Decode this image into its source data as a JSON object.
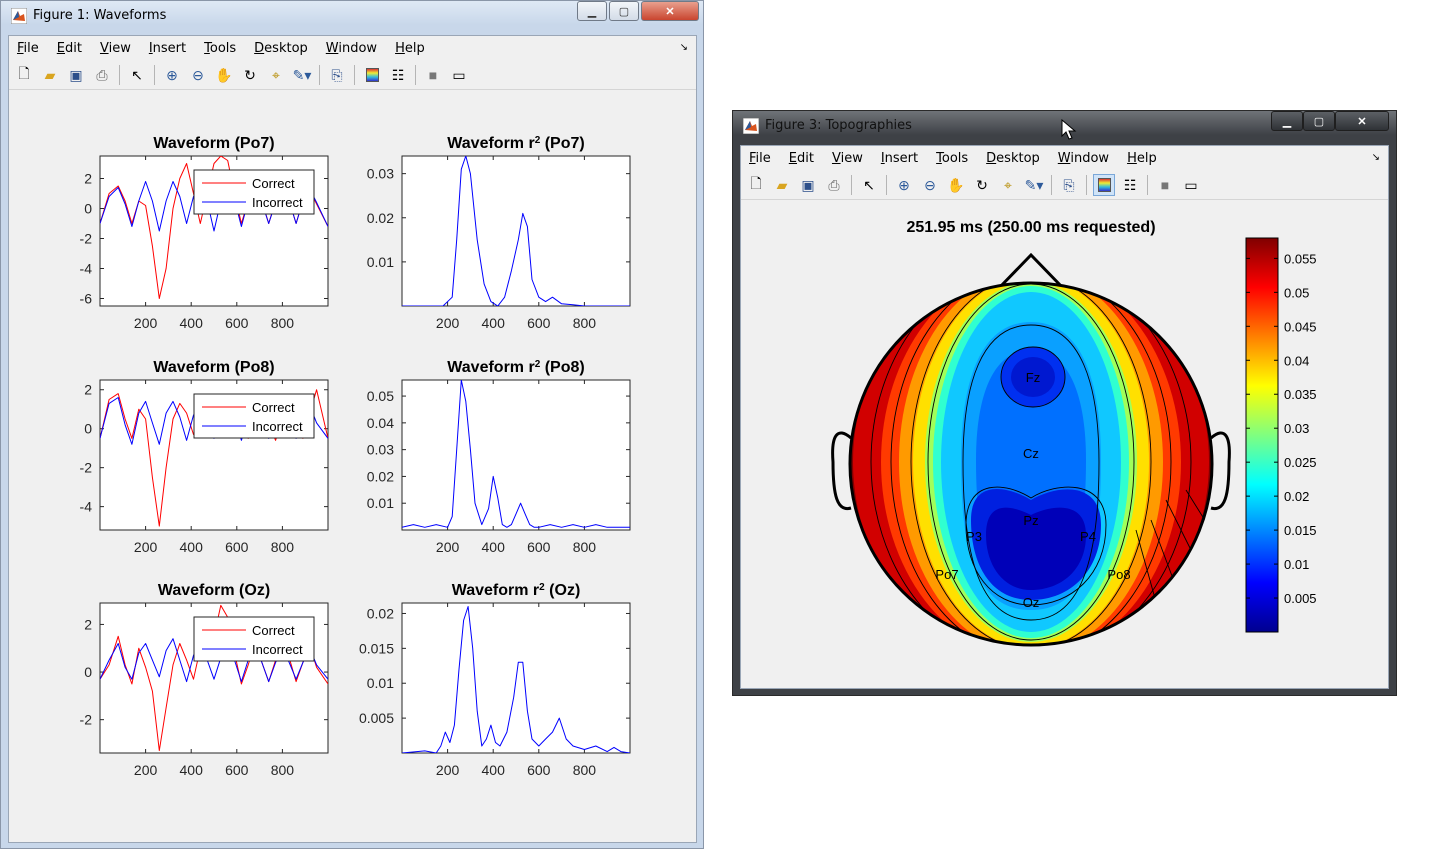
{
  "window1": {
    "title": "Figure 1: Waveforms",
    "menu": [
      "File",
      "Edit",
      "View",
      "Insert",
      "Tools",
      "Desktop",
      "Window",
      "Help"
    ],
    "toolbar_icons": [
      "new-file-icon",
      "open-folder-icon",
      "save-icon",
      "print-icon",
      "pointer-icon",
      "zoom-in-icon",
      "zoom-out-icon",
      "pan-hand-icon",
      "rotate-3d-icon",
      "data-cursor-icon",
      "brush-icon",
      "link-plot-icon",
      "colorbar-icon",
      "legend-icon",
      "hide-plot-tools-icon",
      "show-plot-tools-icon"
    ]
  },
  "window2": {
    "title": "Figure 3: Topographies",
    "menu": [
      "File",
      "Edit",
      "View",
      "Insert",
      "Tools",
      "Desktop",
      "Window",
      "Help"
    ],
    "toolbar_icons": [
      "new-file-icon",
      "open-folder-icon",
      "save-icon",
      "print-icon",
      "pointer-icon",
      "zoom-in-icon",
      "zoom-out-icon",
      "pan-hand-icon",
      "rotate-3d-icon",
      "data-cursor-icon",
      "brush-icon",
      "link-plot-icon",
      "colorbar-icon",
      "legend-icon",
      "hide-plot-tools-icon",
      "show-plot-tools-icon"
    ]
  },
  "colors": {
    "correct": "#ff0000",
    "incorrect": "#0000ff"
  },
  "chart_data": [
    {
      "type": "line",
      "title": "Waveform (Po7)",
      "xlim": [
        0,
        1000
      ],
      "ylim": [
        -6.5,
        3.5
      ],
      "xticks": [
        200,
        400,
        600,
        800
      ],
      "yticks": [
        2,
        0,
        -2,
        -4,
        -6
      ],
      "legend": [
        "Correct",
        "Incorrect"
      ],
      "series": [
        {
          "name": "Correct",
          "x": [
            0,
            40,
            80,
            110,
            140,
            170,
            200,
            230,
            260,
            290,
            320,
            350,
            380,
            410,
            440,
            470,
            500,
            530,
            560,
            590,
            620,
            650,
            680,
            710,
            740,
            770,
            800,
            830,
            860,
            890,
            920,
            950,
            1000
          ],
          "y": [
            -1,
            1,
            1.5,
            0.5,
            -1,
            0.5,
            0.2,
            -2.5,
            -6,
            -4,
            0,
            2,
            3,
            1,
            -1,
            1,
            3,
            3.5,
            3.2,
            1,
            -1,
            0.5,
            1.5,
            0.5,
            -1,
            0.5,
            1.5,
            0.5,
            -1,
            0.5,
            1.2,
            0.3,
            -1.2
          ]
        },
        {
          "name": "Incorrect",
          "x": [
            0,
            40,
            80,
            110,
            140,
            170,
            200,
            230,
            260,
            290,
            320,
            350,
            380,
            410,
            440,
            470,
            500,
            530,
            560,
            590,
            620,
            650,
            680,
            710,
            740,
            770,
            800,
            830,
            860,
            890,
            920,
            950,
            1000
          ],
          "y": [
            -1,
            0.8,
            1.4,
            0.3,
            -1.2,
            0.5,
            1.8,
            0.5,
            -1.5,
            0.5,
            1.8,
            0.8,
            -1,
            0.8,
            1.6,
            0.5,
            -1.5,
            0.5,
            1.6,
            0.6,
            -1.2,
            0.5,
            1.4,
            0.4,
            -1,
            0.4,
            1.4,
            0.5,
            -1,
            0.5,
            1.3,
            0.4,
            -1.2
          ]
        }
      ]
    },
    {
      "type": "line",
      "title": "Waveform r",
      "title_sup": "2",
      "title_suffix": " (Po7)",
      "xlim": [
        0,
        1000
      ],
      "ylim": [
        0,
        0.034
      ],
      "xticks": [
        200,
        400,
        600,
        800
      ],
      "yticks": [
        0.01,
        0.02,
        0.03
      ],
      "series": [
        {
          "name": "",
          "x": [
            0,
            180,
            220,
            240,
            260,
            280,
            300,
            330,
            360,
            390,
            420,
            450,
            480,
            510,
            530,
            550,
            570,
            600,
            630,
            660,
            700,
            750,
            800,
            850,
            900,
            1000
          ],
          "y": [
            0,
            0,
            0.002,
            0.015,
            0.031,
            0.034,
            0.03,
            0.015,
            0.005,
            0.001,
            0,
            0.002,
            0.008,
            0.015,
            0.021,
            0.018,
            0.006,
            0.002,
            0.001,
            0.002,
            0.0005,
            0.0003,
            0,
            0,
            0,
            0
          ]
        }
      ]
    },
    {
      "type": "line",
      "title": "Waveform (Po8)",
      "xlim": [
        0,
        1000
      ],
      "ylim": [
        -5.2,
        2.5
      ],
      "xticks": [
        200,
        400,
        600,
        800
      ],
      "yticks": [
        2,
        0,
        -2,
        -4
      ],
      "legend": [
        "Correct",
        "Incorrect"
      ],
      "series": [
        {
          "name": "Correct",
          "x": [
            0,
            40,
            80,
            110,
            140,
            170,
            200,
            230,
            260,
            290,
            320,
            350,
            380,
            410,
            440,
            470,
            500,
            530,
            560,
            590,
            620,
            650,
            680,
            710,
            740,
            770,
            800,
            830,
            860,
            890,
            920,
            950,
            1000
          ],
          "y": [
            -0.5,
            1.5,
            1.8,
            0.5,
            -0.5,
            1,
            0.5,
            -2.5,
            -5,
            -2,
            0.5,
            1.3,
            0.8,
            -0.3,
            0.8,
            1.5,
            1,
            0.5,
            1.3,
            1.5,
            0.3,
            -0.5,
            0.8,
            1.2,
            0.3,
            -0.6,
            0.5,
            1.2,
            0.4,
            -0.5,
            0.8,
            2,
            -0.5
          ]
        },
        {
          "name": "Incorrect",
          "x": [
            0,
            40,
            80,
            110,
            140,
            170,
            200,
            230,
            260,
            290,
            320,
            350,
            380,
            410,
            440,
            470,
            500,
            530,
            560,
            590,
            620,
            650,
            680,
            710,
            740,
            770,
            800,
            830,
            860,
            890,
            920,
            950,
            1000
          ],
          "y": [
            -0.5,
            1.3,
            1.6,
            0.2,
            -0.8,
            0.8,
            1.4,
            0.3,
            -0.8,
            0.8,
            1.4,
            0.6,
            -0.6,
            0.7,
            1.3,
            0.5,
            -0.5,
            0.6,
            1.2,
            0.6,
            -0.6,
            0.5,
            1.2,
            0.5,
            -0.5,
            0.5,
            1.1,
            0.4,
            -0.5,
            0.5,
            1.2,
            0.3,
            -0.5
          ]
        }
      ]
    },
    {
      "type": "line",
      "title": "Waveform r",
      "title_sup": "2",
      "title_suffix": " (Po8)",
      "xlim": [
        0,
        1000
      ],
      "ylim": [
        0,
        0.056
      ],
      "xticks": [
        200,
        400,
        600,
        800
      ],
      "yticks": [
        0.01,
        0.02,
        0.03,
        0.04,
        0.05
      ],
      "series": [
        {
          "name": "",
          "x": [
            0,
            50,
            100,
            150,
            200,
            220,
            240,
            260,
            280,
            300,
            320,
            350,
            380,
            400,
            420,
            440,
            460,
            480,
            500,
            520,
            540,
            560,
            580,
            600,
            650,
            700,
            750,
            800,
            850,
            900,
            1000
          ],
          "y": [
            0.001,
            0.002,
            0.001,
            0.002,
            0.001,
            0.005,
            0.03,
            0.056,
            0.048,
            0.03,
            0.01,
            0.002,
            0.008,
            0.02,
            0.012,
            0.002,
            0.001,
            0.002,
            0.006,
            0.01,
            0.006,
            0.002,
            0.001,
            0.001,
            0.002,
            0.001,
            0.002,
            0.001,
            0.002,
            0.001,
            0.001
          ]
        }
      ]
    },
    {
      "type": "line",
      "title": "Waveform (Oz)",
      "xlim": [
        0,
        1000
      ],
      "ylim": [
        -3.4,
        2.9
      ],
      "xticks": [
        200,
        400,
        600,
        800
      ],
      "yticks": [
        2,
        0,
        -2
      ],
      "legend": [
        "Correct",
        "Incorrect"
      ],
      "series": [
        {
          "name": "Correct",
          "x": [
            0,
            40,
            80,
            110,
            140,
            170,
            200,
            230,
            260,
            290,
            320,
            350,
            380,
            410,
            440,
            470,
            500,
            530,
            560,
            590,
            620,
            650,
            680,
            710,
            740,
            770,
            800,
            830,
            860,
            890,
            920,
            950,
            1000
          ],
          "y": [
            -0.3,
            0.3,
            1.5,
            0.3,
            -0.5,
            1,
            0.2,
            -0.8,
            -3.3,
            -1.5,
            0.3,
            1.2,
            0.5,
            -0.3,
            1,
            2,
            1.5,
            2.8,
            2.3,
            0.8,
            -0.5,
            0.3,
            1.2,
            0.4,
            -0.4,
            0.5,
            1.3,
            0.6,
            -0.4,
            0.4,
            1.1,
            0.2,
            -0.5
          ]
        },
        {
          "name": "Incorrect",
          "x": [
            0,
            40,
            80,
            110,
            140,
            170,
            200,
            230,
            260,
            290,
            320,
            350,
            380,
            410,
            440,
            470,
            500,
            530,
            560,
            590,
            620,
            650,
            680,
            710,
            740,
            770,
            800,
            830,
            860,
            890,
            920,
            950,
            1000
          ],
          "y": [
            -0.3,
            0.5,
            1.2,
            0.2,
            -0.3,
            0.8,
            1.2,
            0.5,
            -0.2,
            0.9,
            1.4,
            0.5,
            -0.4,
            0.7,
            1.3,
            0.5,
            -0.3,
            0.6,
            1.2,
            0.5,
            -0.4,
            0.5,
            1.1,
            0.4,
            -0.4,
            0.4,
            1.0,
            0.4,
            -0.3,
            0.4,
            1.0,
            0.3,
            -0.3
          ]
        }
      ]
    },
    {
      "type": "line",
      "title": "Waveform r",
      "title_sup": "2",
      "title_suffix": " (Oz)",
      "xlim": [
        0,
        1000
      ],
      "ylim": [
        0,
        0.0215
      ],
      "xticks": [
        200,
        400,
        600,
        800
      ],
      "yticks": [
        0.005,
        0.01,
        0.015,
        0.02
      ],
      "series": [
        {
          "name": "",
          "x": [
            0,
            100,
            150,
            170,
            190,
            210,
            230,
            250,
            270,
            290,
            310,
            330,
            350,
            370,
            390,
            410,
            430,
            460,
            490,
            510,
            530,
            550,
            570,
            600,
            630,
            660,
            690,
            720,
            750,
            800,
            850,
            900,
            930,
            960,
            1000
          ],
          "y": [
            0,
            0.0003,
            0,
            0.001,
            0.003,
            0.0015,
            0.004,
            0.012,
            0.019,
            0.021,
            0.015,
            0.006,
            0.001,
            0.002,
            0.004,
            0.0015,
            0.001,
            0.003,
            0.008,
            0.013,
            0.013,
            0.006,
            0.002,
            0.001,
            0.002,
            0.003,
            0.005,
            0.002,
            0.001,
            0.0005,
            0.001,
            0.0002,
            0.0008,
            0.0002,
            0
          ]
        }
      ]
    },
    {
      "type": "heatmap",
      "title": "251.95 ms (250.00 ms requested)",
      "electrodes": [
        "Fz",
        "Cz",
        "Pz",
        "P3",
        "P4",
        "Po7",
        "Po8",
        "Oz"
      ],
      "colorbar": {
        "ticks": [
          0.005,
          0.01,
          0.015,
          0.02,
          0.025,
          0.03,
          0.035,
          0.04,
          0.045,
          0.05,
          0.055
        ],
        "range": [
          0,
          0.058
        ]
      }
    }
  ]
}
